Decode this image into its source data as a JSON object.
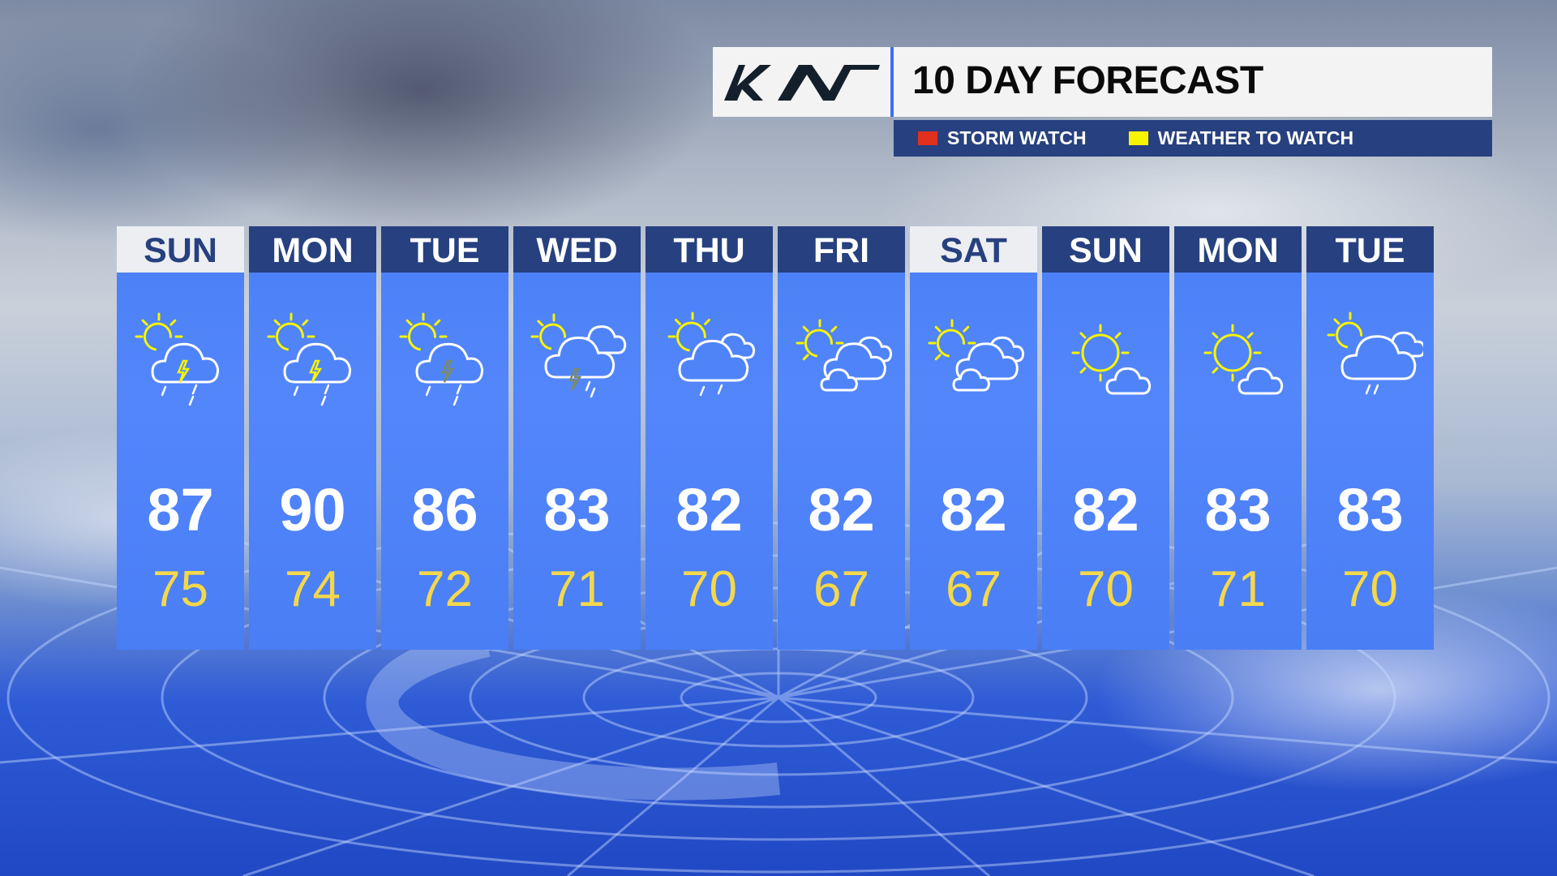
{
  "header": {
    "logo_text": "KIA",
    "title": "10 DAY FORECAST"
  },
  "legend": [
    {
      "label": "STORM WATCH",
      "color": "#e0301e"
    },
    {
      "label": "WEATHER TO WATCH",
      "color": "#f8f400"
    }
  ],
  "colors": {
    "navy": "#27407f",
    "panel_blue": "#4f84f8",
    "high_text": "#ffffff",
    "low_text": "#f4d84a",
    "sun": "#f8f400"
  },
  "days": [
    {
      "day": "SUN",
      "high": "87",
      "low": "75",
      "icon": "sun-cloud-storm-icon",
      "bolt": "#f8f400",
      "header_style": "light"
    },
    {
      "day": "MON",
      "high": "90",
      "low": "74",
      "icon": "sun-cloud-storm-icon",
      "bolt": "#f8f400",
      "header_style": "dark"
    },
    {
      "day": "TUE",
      "high": "86",
      "low": "72",
      "icon": "sun-cloud-storm-icon",
      "bolt": "#7b8a6a",
      "header_style": "dark"
    },
    {
      "day": "WED",
      "high": "83",
      "low": "71",
      "icon": "sun-clouds-storm-icon",
      "bolt": "#7b8a6a",
      "header_style": "dark"
    },
    {
      "day": "THU",
      "high": "82",
      "low": "70",
      "icon": "sun-cloud-rain-icon",
      "header_style": "dark"
    },
    {
      "day": "FRI",
      "high": "82",
      "low": "67",
      "icon": "partly-cloudy-icon",
      "header_style": "dark"
    },
    {
      "day": "SAT",
      "high": "82",
      "low": "67",
      "icon": "partly-cloudy-icon",
      "header_style": "light"
    },
    {
      "day": "SUN",
      "high": "82",
      "low": "70",
      "icon": "mostly-sunny-icon",
      "header_style": "dark"
    },
    {
      "day": "MON",
      "high": "83",
      "low": "71",
      "icon": "mostly-sunny-icon",
      "header_style": "dark"
    },
    {
      "day": "TUE",
      "high": "83",
      "low": "70",
      "icon": "sun-cloud-showers-icon",
      "header_style": "dark"
    }
  ]
}
